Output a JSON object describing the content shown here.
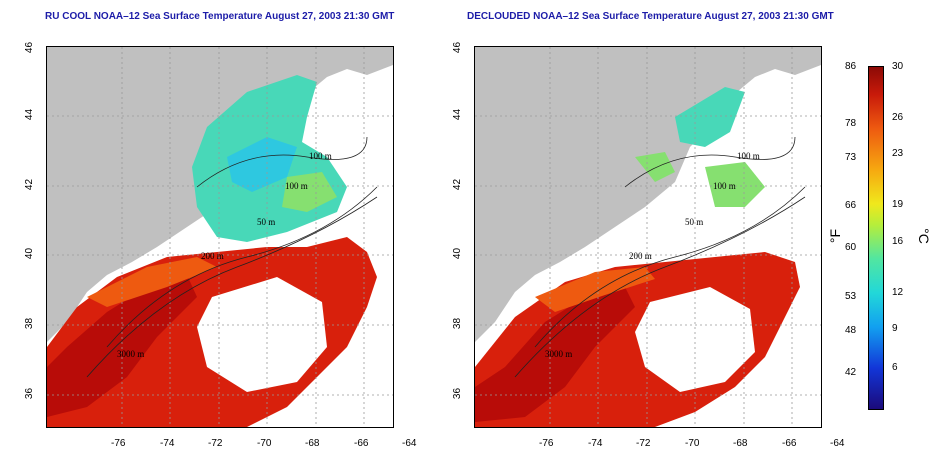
{
  "titles": {
    "left": "RU COOL NOAA–12 Sea Surface Temperature August 27, 2003 21:30 GMT",
    "right": "DECLOUDED NOAA–12 Sea Surface Temperature August 27, 2003 21:30 GMT"
  },
  "axes": {
    "x_ticks": [
      "-76",
      "-74",
      "-72",
      "-70",
      "-68",
      "-66",
      "-64"
    ],
    "y_ticks": [
      "36",
      "38",
      "40",
      "42",
      "44",
      "46"
    ]
  },
  "contours": {
    "a": "100 m",
    "b": "100 m",
    "c": "50 m",
    "d": "200 m",
    "e": "3000 m"
  },
  "colorbar": {
    "fahrenheit_unit": "°F",
    "celsius_unit": "°C",
    "fahrenheit": [
      "86",
      "78",
      "73",
      "66",
      "60",
      "53",
      "48",
      "42"
    ],
    "celsius": [
      "30",
      "26",
      "23",
      "19",
      "16",
      "12",
      "9",
      "6"
    ]
  },
  "colors": {
    "land": "#c0c0c0",
    "warm": "#d8200c",
    "hot": "#b80c08",
    "title": "#1c1ca8"
  }
}
